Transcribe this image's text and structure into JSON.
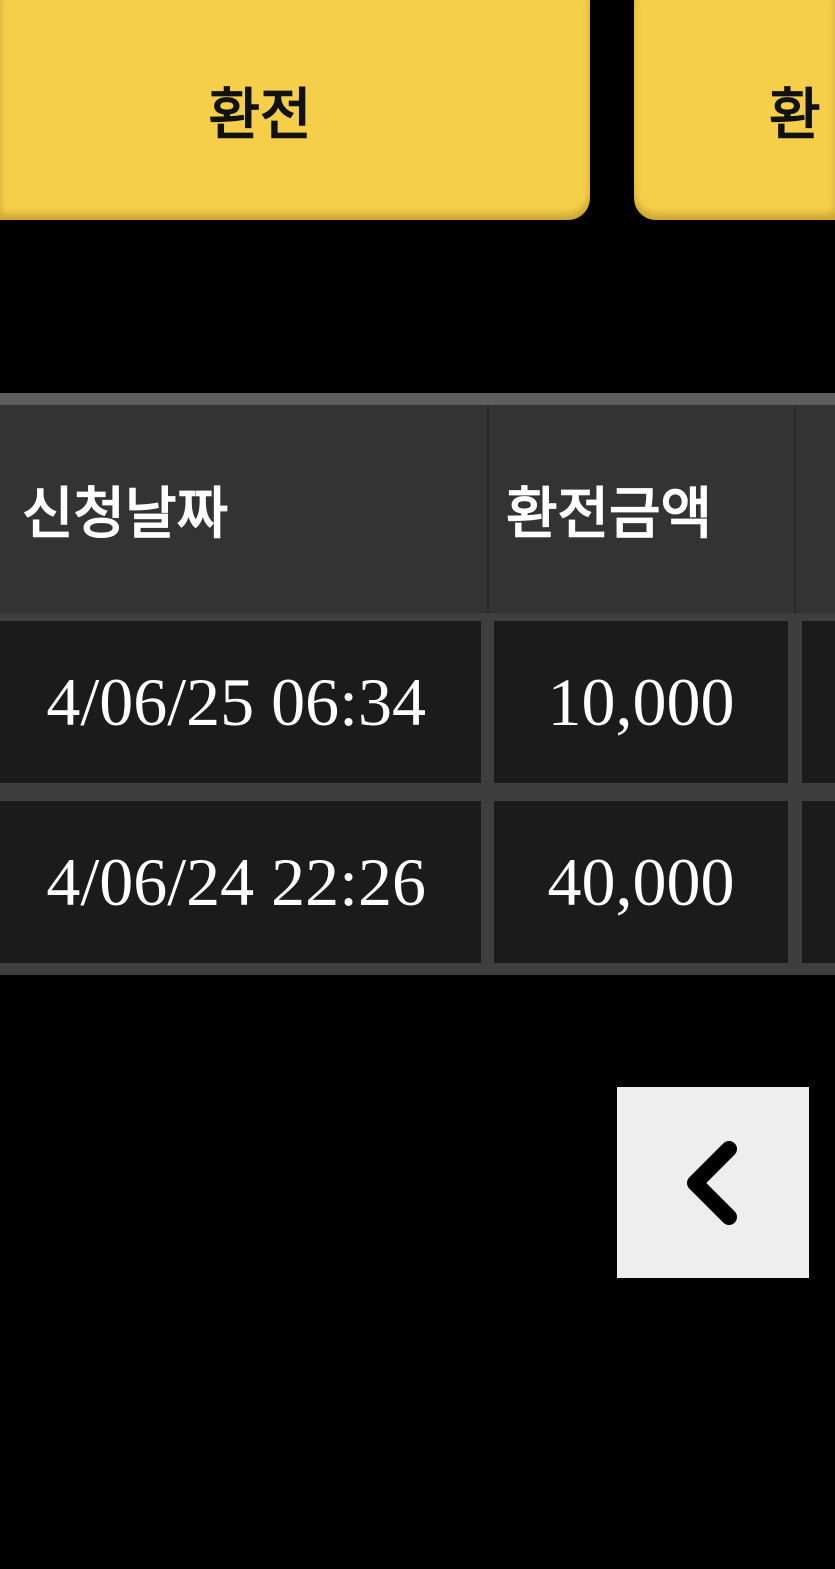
{
  "buttons": {
    "exchange": "환전",
    "second_partial": "환"
  },
  "table": {
    "headers": [
      "신청날짜",
      "환전금액"
    ],
    "rows": [
      {
        "date": "4/06/25 06:34",
        "amount": "10,000"
      },
      {
        "date": "4/06/24 22:26",
        "amount": "40,000"
      }
    ]
  },
  "pagination": {
    "prev_icon": "chevron-left-icon"
  },
  "colors": {
    "accent": "#f6cf4a",
    "header_bg": "#333333",
    "cell_bg": "#1b1b1b"
  }
}
